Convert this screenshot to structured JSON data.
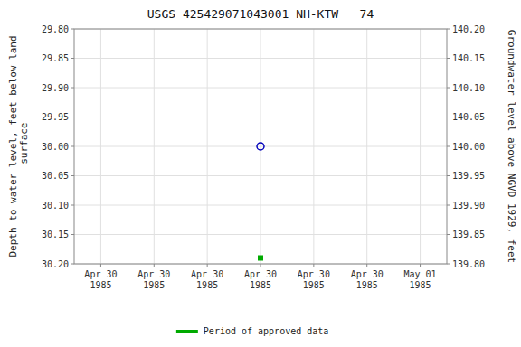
{
  "chart_data": {
    "type": "scatter",
    "title": "USGS 425429071043001 NH-KTW   74",
    "y_label": "Depth to water level, feet below land\n surface",
    "y2_label": "Groundwater level above NGVD 1929, feet",
    "categories": [
      "Apr 30\n1985",
      "Apr 30\n1985",
      "Apr 30\n1985",
      "Apr 30\n1985",
      "Apr 30\n1985",
      "Apr 30\n1985",
      "May 01\n1985"
    ],
    "series": [
      {
        "color": "#0000bb",
        "marker": "open-circle",
        "values": [
          null,
          null,
          null,
          30.0,
          null,
          null,
          null
        ]
      },
      {
        "name": "Period of approved data",
        "color": "#00aa00",
        "marker": "square",
        "values": [
          null,
          null,
          null,
          30.19,
          null,
          null,
          null
        ]
      }
    ],
    "ylim": [
      30.2,
      29.8
    ],
    "yticks": [
      {
        "value": 29.8,
        "label": "29.80"
      },
      {
        "value": 29.85,
        "label": "29.85"
      },
      {
        "value": 29.9,
        "label": "29.90"
      },
      {
        "value": 29.95,
        "label": "29.95"
      },
      {
        "value": 30.0,
        "label": "30.00"
      },
      {
        "value": 30.05,
        "label": "30.05"
      },
      {
        "value": 30.1,
        "label": "30.10"
      },
      {
        "value": 30.15,
        "label": "30.15"
      },
      {
        "value": 30.2,
        "label": "30.20"
      }
    ],
    "y2lim": [
      139.8,
      140.2
    ],
    "y2ticks": [
      {
        "value": 139.8,
        "label": "139.80"
      },
      {
        "value": 139.85,
        "label": "139.85"
      },
      {
        "value": 139.9,
        "label": "139.90"
      },
      {
        "value": 139.95,
        "label": "139.95"
      },
      {
        "value": 140.0,
        "label": "140.00"
      },
      {
        "value": 140.05,
        "label": "140.05"
      },
      {
        "value": 140.1,
        "label": "140.10"
      },
      {
        "value": 140.15,
        "label": "140.15"
      },
      {
        "value": 140.2,
        "label": "140.20"
      }
    ],
    "grid": true,
    "legend": "bottom"
  }
}
